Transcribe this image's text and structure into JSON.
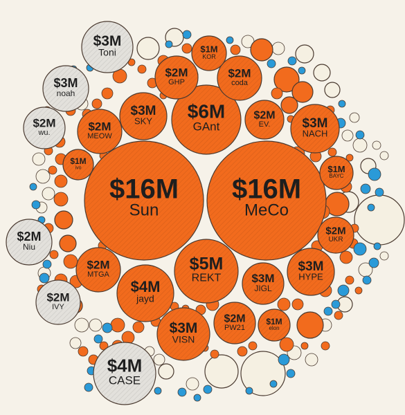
{
  "colors": {
    "background": "#f6f2e9",
    "orange": "#f26b1d",
    "cream": "#f5f0e2",
    "gray": "#e3e1dc",
    "blue": "#2a9ad8",
    "outline": "#4a3a30",
    "text": "#1e1e1e"
  },
  "chart_data": {
    "type": "bubble",
    "title": "",
    "value_unit": "$M",
    "groups": [
      {
        "name": "orange",
        "color": "#f26b1d"
      },
      {
        "name": "gray",
        "color": "#e3e1dc"
      }
    ],
    "labeled_bubbles": [
      {
        "id": "sun",
        "amount_label": "$16M",
        "name": "Sun",
        "value": 16,
        "group": "orange"
      },
      {
        "id": "meco",
        "amount_label": "$16M",
        "name": "MeCo",
        "value": 16,
        "group": "orange"
      },
      {
        "id": "gant",
        "amount_label": "$6M",
        "name": "GAnt",
        "value": 6,
        "group": "orange"
      },
      {
        "id": "rekt",
        "amount_label": "$5M",
        "name": "REKT",
        "value": 5,
        "group": "orange"
      },
      {
        "id": "sky",
        "amount_label": "$3M",
        "name": "SKY",
        "value": 3,
        "group": "orange"
      },
      {
        "id": "nach",
        "amount_label": "$3M",
        "name": "NACH",
        "value": 3,
        "group": "orange"
      },
      {
        "id": "hype",
        "amount_label": "$3M",
        "name": "HYPE",
        "value": 3,
        "group": "orange"
      },
      {
        "id": "jigl",
        "amount_label": "$3M",
        "name": "JIGL",
        "value": 3,
        "group": "orange"
      },
      {
        "id": "visn",
        "amount_label": "$3M",
        "name": "VISN",
        "value": 3,
        "group": "orange"
      },
      {
        "id": "jayd",
        "amount_label": "$4M",
        "name": "jayd",
        "value": 4,
        "group": "orange"
      },
      {
        "id": "ghp",
        "amount_label": "$2M",
        "name": "GHP",
        "value": 2,
        "group": "orange"
      },
      {
        "id": "coda",
        "amount_label": "$2M",
        "name": "coda",
        "value": 2,
        "group": "orange"
      },
      {
        "id": "ev",
        "amount_label": "$2M",
        "name": "EV.",
        "value": 2,
        "group": "orange"
      },
      {
        "id": "meow",
        "amount_label": "$2M",
        "name": "MEOW",
        "value": 2,
        "group": "orange"
      },
      {
        "id": "mtga",
        "amount_label": "$2M",
        "name": "MTGA",
        "value": 2,
        "group": "orange"
      },
      {
        "id": "ukr",
        "amount_label": "$2M",
        "name": "UKR",
        "value": 2,
        "group": "orange"
      },
      {
        "id": "pw21",
        "amount_label": "$2M",
        "name": "PW21",
        "value": 2,
        "group": "orange"
      },
      {
        "id": "kor",
        "amount_label": "$1M",
        "name": "KOR",
        "value": 1,
        "group": "orange"
      },
      {
        "id": "bayc",
        "amount_label": "$1M",
        "name": "BAYC",
        "value": 1,
        "group": "orange"
      },
      {
        "id": "ivo",
        "amount_label": "$1M",
        "name": "ivo",
        "value": 1,
        "group": "orange"
      },
      {
        "id": "elon",
        "amount_label": "$1M",
        "name": "elon",
        "value": 1,
        "group": "orange"
      },
      {
        "id": "toni",
        "amount_label": "$3M",
        "name": "Toni",
        "value": 3,
        "group": "gray"
      },
      {
        "id": "noah",
        "amount_label": "$3M",
        "name": "noah",
        "value": 3,
        "group": "gray"
      },
      {
        "id": "wu",
        "amount_label": "$2M",
        "name": "wu.",
        "value": 2,
        "group": "gray"
      },
      {
        "id": "niu",
        "amount_label": "$2M",
        "name": "Niu",
        "value": 2,
        "group": "gray"
      },
      {
        "id": "ivy",
        "amount_label": "$2M",
        "name": "IVY",
        "value": 2,
        "group": "gray"
      },
      {
        "id": "case",
        "amount_label": "$4M",
        "name": "CASE",
        "value": 4,
        "group": "gray"
      }
    ]
  }
}
